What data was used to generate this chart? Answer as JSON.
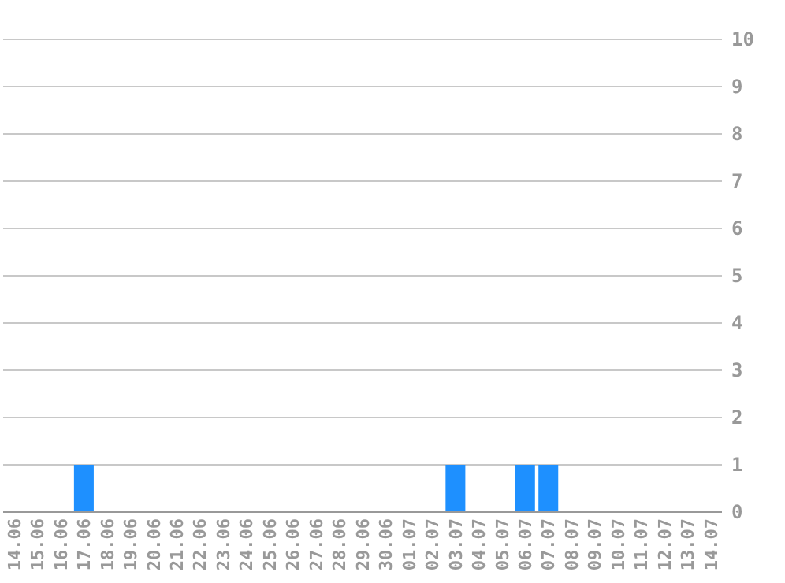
{
  "chart_data": {
    "type": "bar",
    "categories": [
      "14.06",
      "15.06",
      "16.06",
      "17.06",
      "18.06",
      "19.06",
      "20.06",
      "21.06",
      "22.06",
      "23.06",
      "24.06",
      "25.06",
      "26.06",
      "27.06",
      "28.06",
      "29.06",
      "30.06",
      "01.07",
      "02.07",
      "03.07",
      "04.07",
      "05.07",
      "06.07",
      "07.07",
      "08.07",
      "09.07",
      "10.07",
      "11.07",
      "12.07",
      "13.07",
      "14.07"
    ],
    "values": [
      0,
      0,
      0,
      1,
      0,
      0,
      0,
      0,
      0,
      0,
      0,
      0,
      0,
      0,
      0,
      0,
      0,
      0,
      0,
      1,
      0,
      0,
      1,
      1,
      0,
      0,
      0,
      0,
      0,
      0,
      0
    ],
    "color": "#1e90ff",
    "ylim": [
      0,
      10
    ],
    "yticks": [
      0,
      1,
      2,
      3,
      4,
      5,
      6,
      7,
      8,
      9,
      10
    ],
    "grid": "y"
  }
}
